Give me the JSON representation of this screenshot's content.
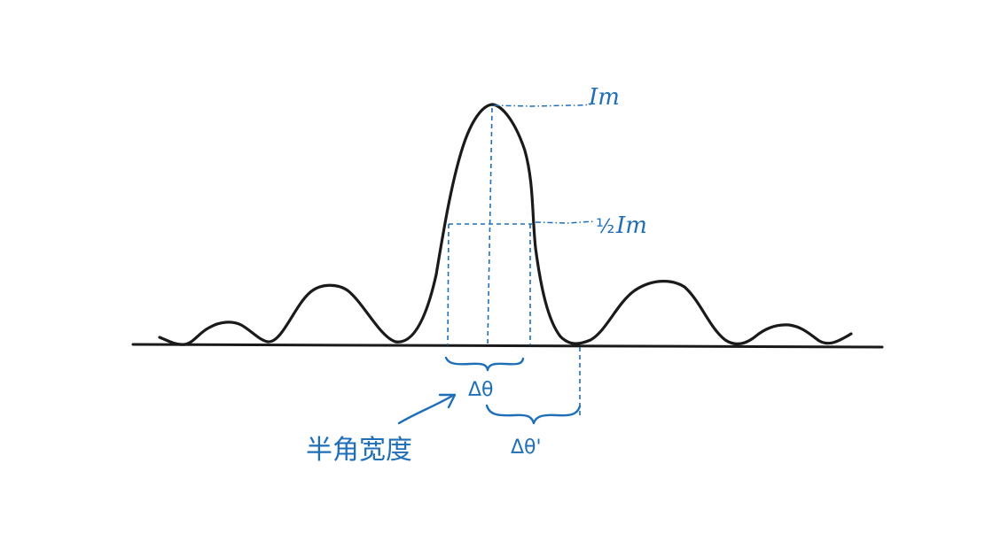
{
  "labels": {
    "peak": "Im",
    "half_peak": "Im",
    "half_fraction": "½",
    "delta_theta": "Δθ",
    "delta_theta_prime": "Δθ'",
    "annotation": "半角宽度"
  },
  "colors": {
    "curve": "#1a1a1a",
    "annotation": "#1f6fb8",
    "background": "#ffffff"
  }
}
